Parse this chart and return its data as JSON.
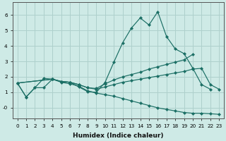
{
  "xlabel": "Humidex (Indice chaleur)",
  "background_color": "#ceeae6",
  "grid_color": "#aed0cc",
  "line_color": "#1a6e64",
  "xlim": [
    -0.5,
    23.5
  ],
  "ylim": [
    -0.7,
    6.8
  ],
  "xticks": [
    0,
    1,
    2,
    3,
    4,
    5,
    6,
    7,
    8,
    9,
    10,
    11,
    12,
    13,
    14,
    15,
    16,
    17,
    18,
    19,
    20,
    21,
    22,
    23
  ],
  "yticks": [
    0,
    1,
    2,
    3,
    4,
    5,
    6
  ],
  "ytick_labels": [
    "-0",
    "1",
    "2",
    "3",
    "4",
    "5",
    "6"
  ],
  "series": [
    {
      "x": [
        0,
        1,
        2,
        3,
        4,
        5,
        6,
        7,
        8,
        9,
        10,
        11,
        12,
        13,
        14,
        15,
        16,
        17,
        18,
        19,
        20,
        21,
        22,
        23
      ],
      "y": [
        1.6,
        0.7,
        1.3,
        1.9,
        1.85,
        1.7,
        1.65,
        1.35,
        1.05,
        1.0,
        1.65,
        2.95,
        4.2,
        5.15,
        5.8,
        5.35,
        6.2,
        4.6,
        3.8,
        3.5,
        2.55,
        1.5,
        1.2,
        null
      ]
    },
    {
      "x": [
        0,
        4,
        5,
        6,
        7,
        8,
        9,
        10,
        11,
        12,
        13,
        14,
        15,
        16,
        17,
        18,
        19,
        20,
        21,
        22,
        23
      ],
      "y": [
        1.6,
        1.85,
        1.7,
        1.65,
        1.5,
        1.3,
        1.25,
        1.55,
        1.8,
        2.0,
        2.15,
        2.3,
        2.5,
        2.65,
        2.8,
        2.95,
        3.1,
        3.45,
        null,
        null,
        null
      ]
    },
    {
      "x": [
        0,
        4,
        5,
        6,
        7,
        8,
        9,
        10,
        11,
        12,
        13,
        14,
        15,
        16,
        17,
        18,
        19,
        20,
        21,
        22,
        23
      ],
      "y": [
        1.6,
        1.85,
        1.7,
        1.65,
        1.5,
        1.3,
        1.2,
        1.35,
        1.5,
        1.65,
        1.75,
        1.85,
        1.95,
        2.05,
        2.15,
        2.25,
        2.35,
        2.5,
        2.55,
        1.5,
        1.2
      ]
    },
    {
      "x": [
        0,
        1,
        2,
        3,
        4,
        5,
        6,
        7,
        8,
        9,
        10,
        11,
        12,
        13,
        14,
        15,
        16,
        17,
        18,
        19,
        20,
        21,
        22,
        23
      ],
      "y": [
        1.6,
        0.7,
        1.3,
        1.3,
        1.85,
        1.65,
        1.55,
        1.4,
        1.1,
        0.95,
        0.85,
        0.75,
        0.6,
        0.45,
        0.3,
        0.15,
        0.0,
        -0.1,
        -0.2,
        -0.3,
        -0.35,
        -0.35,
        -0.38,
        -0.42
      ]
    }
  ]
}
